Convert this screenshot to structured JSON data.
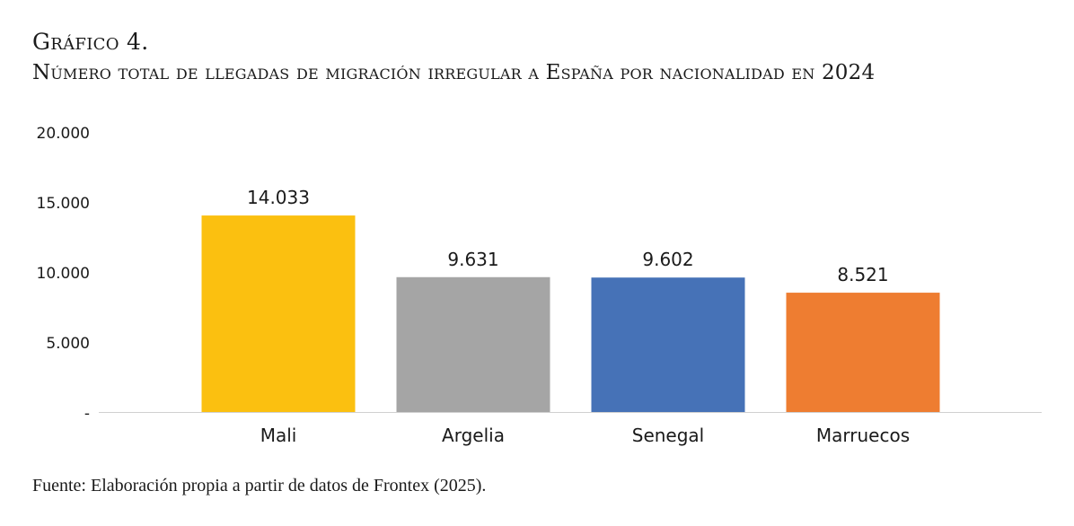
{
  "figure": {
    "label": "Gráfico 4.",
    "title": "Número total de llegadas de migración irregular a España por nacionalidad en 2024",
    "source": "Fuente: Elaboración propia a partir de datos de Frontex (2025)."
  },
  "chart_data": {
    "type": "bar",
    "categories": [
      "Mali",
      "Argelia",
      "Senegal",
      "Marruecos"
    ],
    "values": [
      14033,
      9631,
      9602,
      8521
    ],
    "data_labels": [
      "14.033",
      "9.631",
      "9.602",
      "8.521"
    ],
    "colors": [
      "#FBC010",
      "#A5A5A5",
      "#4672B7",
      "#EE7D31"
    ],
    "ylim": [
      0,
      20000
    ],
    "yticks": [
      {
        "value": 0,
        "label": "-"
      },
      {
        "value": 5000,
        "label": "5.000"
      },
      {
        "value": 10000,
        "label": "10.000"
      },
      {
        "value": 15000,
        "label": "15.000"
      },
      {
        "value": 20000,
        "label": "20.000"
      }
    ],
    "xlabel": "",
    "ylabel": "",
    "grid": false,
    "legend": "none"
  }
}
